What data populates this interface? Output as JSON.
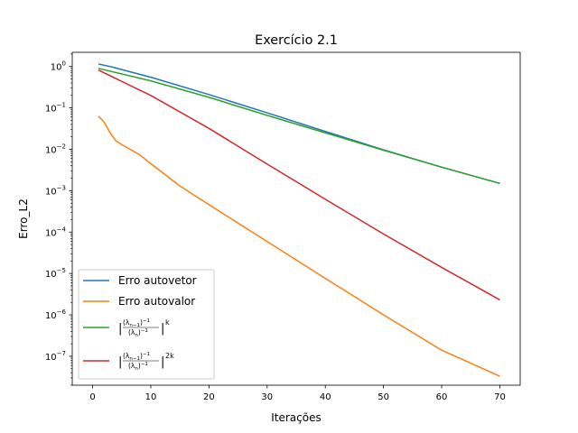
{
  "chart_data": {
    "type": "line",
    "title": "Exercício 2.1",
    "xlabel": "Iterações",
    "ylabel": "Erro_L2",
    "yscale": "log",
    "xlim": [
      -3.5,
      73.5
    ],
    "ylim": [
      2e-08,
      2.2
    ],
    "xticks": [
      0,
      10,
      20,
      30,
      40,
      50,
      60,
      70
    ],
    "yticks": [
      {
        "value": 1,
        "mant": "10",
        "exp": "0"
      },
      {
        "value": 0.1,
        "mant": "10",
        "exp": "−1"
      },
      {
        "value": 0.01,
        "mant": "10",
        "exp": "−2"
      },
      {
        "value": 0.001,
        "mant": "10",
        "exp": "−3"
      },
      {
        "value": 0.0001,
        "mant": "10",
        "exp": "−4"
      },
      {
        "value": 1e-05,
        "mant": "10",
        "exp": "−5"
      },
      {
        "value": 1e-06,
        "mant": "10",
        "exp": "−6"
      },
      {
        "value": 1e-07,
        "mant": "10",
        "exp": "−7"
      }
    ],
    "legend_position": "lower-left",
    "series": [
      {
        "name": "Erro autovetor",
        "color": "#1f77b4",
        "points": [
          [
            1,
            1.15
          ],
          [
            3,
            1.0
          ],
          [
            10,
            0.55
          ],
          [
            20,
            0.21
          ],
          [
            30,
            0.076
          ],
          [
            40,
            0.027
          ],
          [
            50,
            0.0097
          ],
          [
            60,
            0.0037
          ],
          [
            70,
            0.0015
          ]
        ]
      },
      {
        "name": "Erro autovalor",
        "color": "#ff7f0e",
        "points": [
          [
            1,
            0.063
          ],
          [
            2,
            0.045
          ],
          [
            3,
            0.025
          ],
          [
            4,
            0.016
          ],
          [
            5,
            0.013
          ],
          [
            8,
            0.0075
          ],
          [
            10,
            0.0045
          ],
          [
            15,
            0.0013
          ],
          [
            20,
            0.00046
          ],
          [
            30,
            5.9e-05
          ],
          [
            40,
            7.6e-06
          ],
          [
            50,
            1e-06
          ],
          [
            60,
            1.4e-07
          ],
          [
            70,
            3.3e-08
          ]
        ]
      },
      {
        "name_parts": {
          "pre": "|",
          "num": "(λ",
          "num_sub": "n−1",
          "num_post": ")",
          "num_sup": "−1",
          "den": "(λ",
          "den_sub": "n",
          "den_post": ")",
          "den_sup": "−1",
          "post": "|",
          "exp": "k"
        },
        "color": "#2ca02c",
        "points": [
          [
            1,
            0.9
          ],
          [
            10,
            0.45
          ],
          [
            20,
            0.18
          ],
          [
            30,
            0.066
          ],
          [
            40,
            0.025
          ],
          [
            50,
            0.0095
          ],
          [
            60,
            0.0037
          ],
          [
            70,
            0.0015
          ]
        ]
      },
      {
        "name_parts": {
          "pre": "|",
          "num": "(λ",
          "num_sub": "n−1",
          "num_post": ")",
          "num_sup": "−1",
          "den": "(λ",
          "den_sub": "n",
          "den_post": ")",
          "den_sup": "−1",
          "post": "|",
          "exp": "2k"
        },
        "color": "#d62728",
        "points": [
          [
            1,
            0.82
          ],
          [
            10,
            0.2
          ],
          [
            20,
            0.032
          ],
          [
            30,
            0.0044
          ],
          [
            40,
            0.00062
          ],
          [
            50,
            9e-05
          ],
          [
            60,
            1.4e-05
          ],
          [
            70,
            2.3e-06
          ]
        ]
      }
    ]
  }
}
